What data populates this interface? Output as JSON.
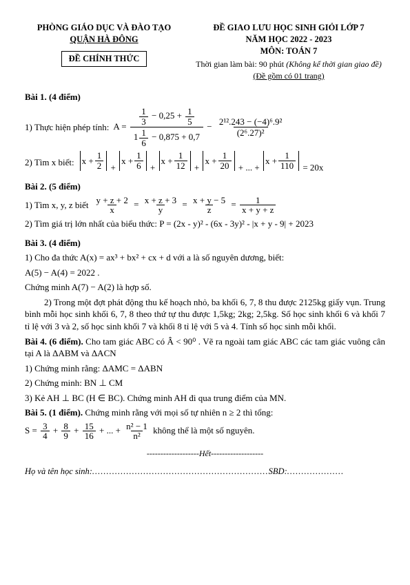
{
  "header": {
    "dept_line1": "PHÒNG GIÁO DỤC VÀ ĐÀO TẠO",
    "dept_line2": "QUẬN HÀ ĐÔNG",
    "box": "ĐỀ CHÍNH THỨC",
    "title1": "ĐỀ GIAO LƯU HỌC SINH GIỎI LỚP 7",
    "title2": "NĂM HỌC 2022 - 2023",
    "title3": "MÔN: TOÁN 7",
    "timing_prefix": "Thời gian làm bài: 90 phút ",
    "timing_italic": "(Không kể thời gian giao đề)",
    "pages": "(Đề gồm có 01 trang)"
  },
  "b1": {
    "head": "Bài 1. (4 điểm)",
    "q1_label": "1) Thực hiện phép tính:",
    "q1_A": "A =",
    "q1_num_a": "1",
    "q1_num_b": "3",
    "q1_num_c": "− 0,25 +",
    "q1_num_d": "1",
    "q1_num_e": "5",
    "q1_den_a": "1",
    "q1_den_b": "1",
    "q1_den_c": "6",
    "q1_den_d": "− 0,875 + 0,7",
    "q1_minus": " − ",
    "q1_r_num": "2¹².243 − (−4)⁶.9²",
    "q1_r_den": "(2⁶.27)²",
    "q2_label": "2) Tìm x biết:",
    "q2_terms": [
      "x +",
      "x +",
      "x +",
      "x +",
      "x +"
    ],
    "q2_fracs": [
      [
        "1",
        "2"
      ],
      [
        "1",
        "6"
      ],
      [
        "1",
        "12"
      ],
      [
        "1",
        "20"
      ],
      [
        "1",
        "110"
      ]
    ],
    "q2_plus": " + ",
    "q2_dots": " + ... + ",
    "q2_rhs": " = 20x"
  },
  "b2": {
    "head": "Bài 2. (5 điểm)",
    "q1_label": "1) Tìm x, y, z biết",
    "q1_f1n": "y + z + 2",
    "q1_f1d": "x",
    "q1_f2n": "x + z + 3",
    "q1_f2d": "y",
    "q1_f3n": "x + y − 5",
    "q1_f3d": "z",
    "q1_f4n": "1",
    "q1_f4d": "x + y + z",
    "q1_eq": " = ",
    "q2_label": "2) Tìm giá trị lớn nhất của biểu thức: P =  (2x - y)² - (6x - 3y)² - |x + y - 9| + 2023"
  },
  "b3": {
    "head": "Bài 3. (4 điểm)",
    "q1_line1": "1) Cho đa thức  A(x) = ax³ + bx² + cx + d  với a là số nguyên dương, biết:",
    "q1_line2": "A(5) − A(4) = 2022 .",
    "q1_line3": "Chứng minh  A(7) − A(2)  là hợp số.",
    "q2": "2) Trong một đợt phát động thu kế hoạch nhỏ, ba khối 6, 7, 8 thu được 2125kg giấy vụn. Trung bình mỗi học sinh khối 6, 7, 8 theo thứ tự thu được 1,5kg; 2kg; 2,5kg. Số học sinh khối 6 và khối 7 tỉ lệ với 3 và 2, số học sinh khối 7 và khối 8 tỉ lệ với 5 và 4. Tính số học sinh mỗi khối."
  },
  "b4": {
    "head_pre": "Bài 4. (6 điểm).",
    "head_rest": " Cho tam giác  ABC có  Â < 90⁰ . Vẽ ra ngoài tam giác  ABC các tam giác vuông cân tại A là ΔABM và ΔACN",
    "q1": "1) Chứng minh rằng: ΔAMC = ΔABN",
    "q2": "2) Chứng minh:  BN ⊥ CM",
    "q3": "3) Kẻ  AH ⊥ BC  (H ∈ BC). Chứng minh AH đi qua trung điểm của MN."
  },
  "b5": {
    "head_pre": "Bài 5. (1 điểm).",
    "head_rest": " Chứng minh rằng với mọi số tự nhiên  n ≥ 2  thì tổng:",
    "s_lhs": "S =",
    "s_terms": [
      [
        "3",
        "4"
      ],
      [
        "8",
        "9"
      ],
      [
        "15",
        "16"
      ]
    ],
    "s_plus": " + ",
    "s_dots": " + ... + ",
    "s_last_n": "n² − 1",
    "s_last_d": "n²",
    "s_tail": "  không thể là một số nguyên."
  },
  "footer": {
    "end": "-------------------Hết-------------------",
    "name_label": "Họ và tên học sinh:",
    "name_dots": "..............................................................",
    "sbd_label": "SBD:",
    "sbd_dots": "...................."
  },
  "style": {
    "page_bg": "#ffffff",
    "text_color": "#000000",
    "base_fontsize": 13
  }
}
